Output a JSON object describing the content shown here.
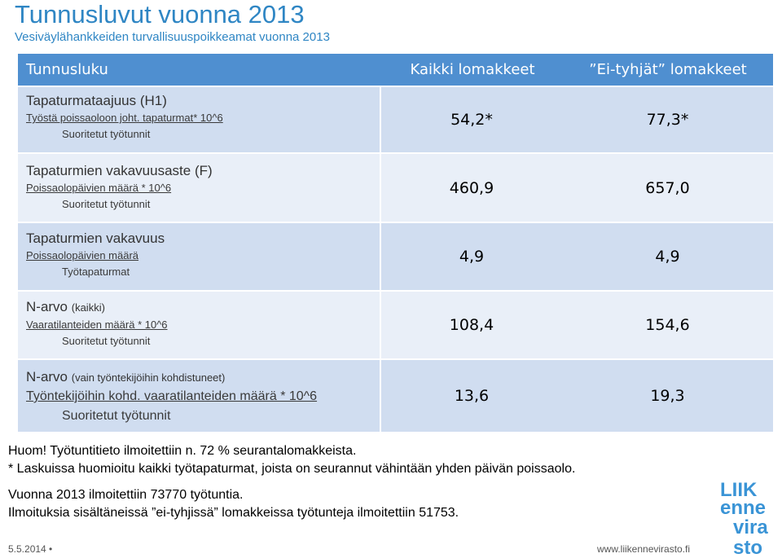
{
  "header": {
    "title": "Tunnusluvut vuonna 2013",
    "subtitle": "Vesiväylähankkeiden turvallisuuspoikkeamat vuonna 2013"
  },
  "table": {
    "columns": [
      "Tunnusluku",
      "Kaikki lomakkeet",
      "”Ei-tyhjät” lomakkeet"
    ],
    "rows": [
      {
        "title": "Tapaturmataajuus (H1)",
        "title_note": "",
        "numerator": "Työstä poissaoloon joht. tapaturmat* 10^6",
        "denominator": "Suoritetut työtunnit",
        "all": "54,2*",
        "nonempty": "77,3*"
      },
      {
        "title": "Tapaturmien vakavuusaste (F)",
        "title_note": "",
        "numerator": "Poissaolopäivien määrä * 10^6",
        "denominator": "Suoritetut työtunnit",
        "all": "460,9",
        "nonempty": "657,0"
      },
      {
        "title": "Tapaturmien vakavuus",
        "title_note": "",
        "numerator": "Poissaolopäivien määrä",
        "denominator": "Työtapaturmat",
        "all": "4,9",
        "nonempty": "4,9"
      },
      {
        "title": "N-arvo",
        "title_note": "(kaikki)",
        "numerator": "Vaaratilanteiden määrä * 10^6",
        "denominator": "Suoritetut työtunnit",
        "all": "108,4",
        "nonempty": "154,6"
      },
      {
        "title": "N-arvo",
        "title_note": "(vain työntekijöihin kohdistuneet)",
        "numerator": "Työntekijöihin kohd. vaaratilanteiden määrä * 10^6",
        "denominator": "Suoritetut työtunnit",
        "all": "13,6",
        "nonempty": "19,3"
      }
    ]
  },
  "notes": {
    "line1": "Huom! Työtuntitieto ilmoitettiin n. 72 % seurantalomakkeista.",
    "line2": "* Laskuissa huomioitu kaikki työtapaturmat, joista on seurannut vähintään yhden päivän poissaolo.",
    "line3": "Vuonna 2013 ilmoitettiin 73770 työtuntia.",
    "line4": "Ilmoituksia sisältäneissä ”ei-tyhjissä” lomakkeissa työtunteja ilmoitettiin 51753."
  },
  "footer": {
    "date": "5.5.2014 •",
    "url": "www.liikennevirasto.fi"
  },
  "logo": {
    "lines": [
      "LIIK",
      "enne",
      "vira",
      "sto"
    ],
    "color": "#3a94d6"
  },
  "colors": {
    "accent": "#2f86c4",
    "header_bg": "#4f8fd0",
    "row_dark": "#d0ddf0",
    "row_light": "#e9eff8"
  }
}
